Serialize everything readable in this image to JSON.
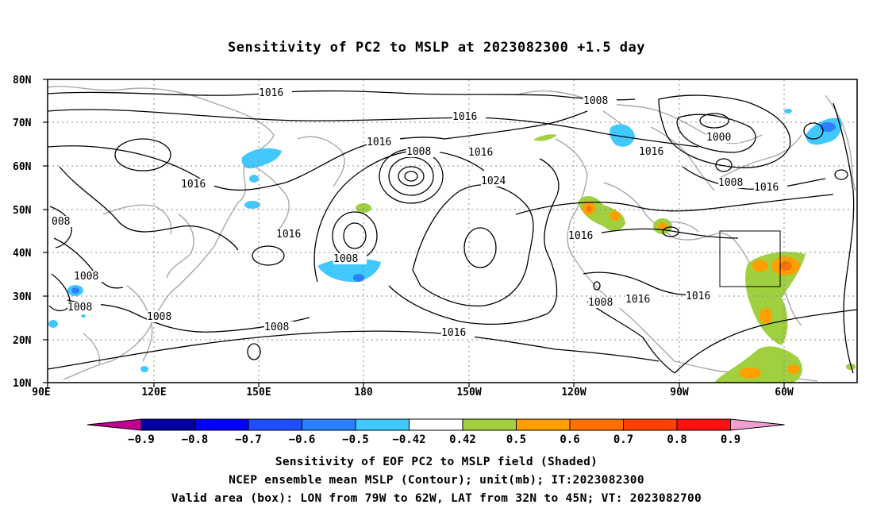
{
  "title": "Sensitivity of PC2 to MSLP at 2023082300 +1.5 day",
  "lat_labels": [
    "80N",
    "70N",
    "60N",
    "50N",
    "40N",
    "30N",
    "20N",
    "10N"
  ],
  "lon_labels": [
    "90E",
    "120E",
    "150E",
    "180",
    "150W",
    "120W",
    "90W",
    "60W"
  ],
  "colorbar": {
    "labels": [
      "-0.9",
      "-0.8",
      "-0.7",
      "-0.6",
      "-0.5",
      "-0.42",
      "0.42",
      "0.5",
      "0.6",
      "0.7",
      "0.8",
      "0.9"
    ],
    "colors": [
      "#c00090",
      "#0000a0",
      "#0000ff",
      "#1d4fff",
      "#2a80ff",
      "#40c8ff",
      "#00d0f8",
      "#ffffff",
      "#a0d040",
      "#ffa000",
      "#ff7000",
      "#ff4000",
      "#ff1010",
      "#ff0000",
      "#f0a0d0"
    ]
  },
  "contour_labels": {
    "c1": "1016",
    "c2": "1008",
    "c3": "1016",
    "c4": "1016",
    "c5": "1008",
    "c6": "1016",
    "c7": "1000",
    "c8": "1016",
    "c9": "1008",
    "c10": "1016",
    "c11": "008",
    "c12": "1016",
    "c13": "1024",
    "c14": "1016",
    "c15": "1008",
    "c16": "1008",
    "c17": "1008",
    "c18": "1008",
    "c19": "1008",
    "c20": "1016",
    "c21": "1016",
    "c22": "1016",
    "c23": "1008",
    "c24": "1016"
  },
  "captions": {
    "line1": "Sensitivity of EOF PC2 to MSLP field (Shaded)",
    "line2": "NCEP ensemble mean MSLP (Contour); unit(mb); IT:2023082300",
    "line3": "Valid area (box): LON from 79W to 62W, LAT from 32N to 45N; VT: 2023082700"
  }
}
